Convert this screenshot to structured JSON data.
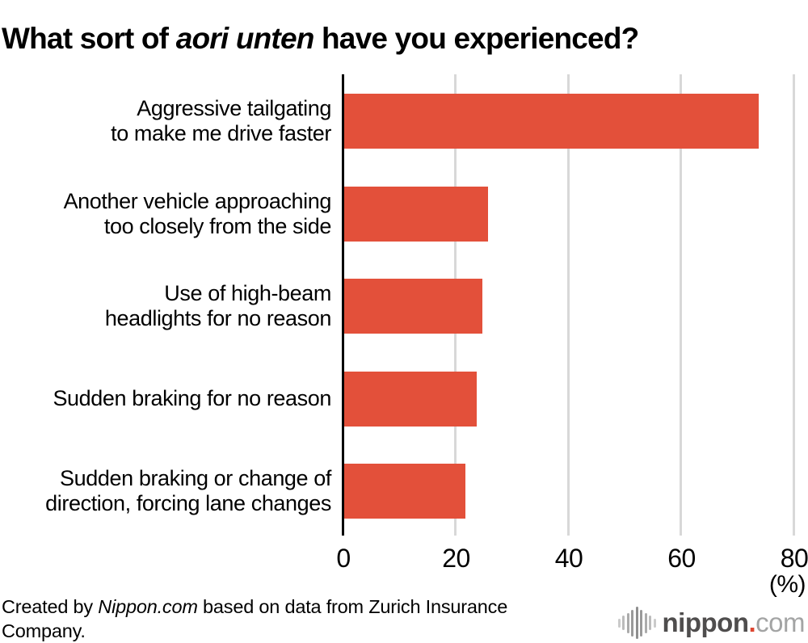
{
  "title": {
    "prefix": "What sort of ",
    "italic": "aori unten",
    "suffix": " have you experienced?"
  },
  "chart_data": {
    "type": "bar",
    "orientation": "horizontal",
    "title": "What sort of aori unten have you experienced?",
    "categories": [
      "Aggressive tailgating to make me drive faster",
      "Another vehicle approaching too closely from the side",
      "Use of high-beam headlights for no reason",
      "Sudden braking for no reason",
      "Sudden braking or change of direction, forcing lane changes"
    ],
    "label_lines": [
      [
        "Aggressive tailgating",
        "to make me drive faster"
      ],
      [
        "Another vehicle approaching",
        "too closely from the side"
      ],
      [
        "Use of high-beam",
        "headlights for no reason"
      ],
      [
        "Sudden braking for no reason"
      ],
      [
        "Sudden braking or change of",
        "direction, forcing lane changes"
      ]
    ],
    "values": [
      73.5,
      25.5,
      24.5,
      23.5,
      21.5
    ],
    "xlim": [
      0,
      80
    ],
    "xticks": [
      0,
      20,
      40,
      60,
      80
    ],
    "unit_label": "(%)",
    "bar_color": "#e3503a",
    "grid": true,
    "gridline_color": "#d8d8d8",
    "legend": "none"
  },
  "footer": {
    "prefix": "Created by ",
    "brand": "Nippon.com",
    "suffix": " based on data from Zurich Insurance Company."
  },
  "logo": {
    "bold": "nippon",
    "dot": ".",
    "light": "com",
    "icon_bar_heights": [
      11,
      18,
      25,
      33,
      40,
      33,
      25,
      18,
      11
    ],
    "icon_bar_colors": [
      "#cbcbcb",
      "#bcbcbc",
      "#ababab",
      "#9a9a9a",
      "#8f8f8f",
      "#9a9a9a",
      "#ababab",
      "#bcbcbc",
      "#cbcbcb"
    ]
  }
}
